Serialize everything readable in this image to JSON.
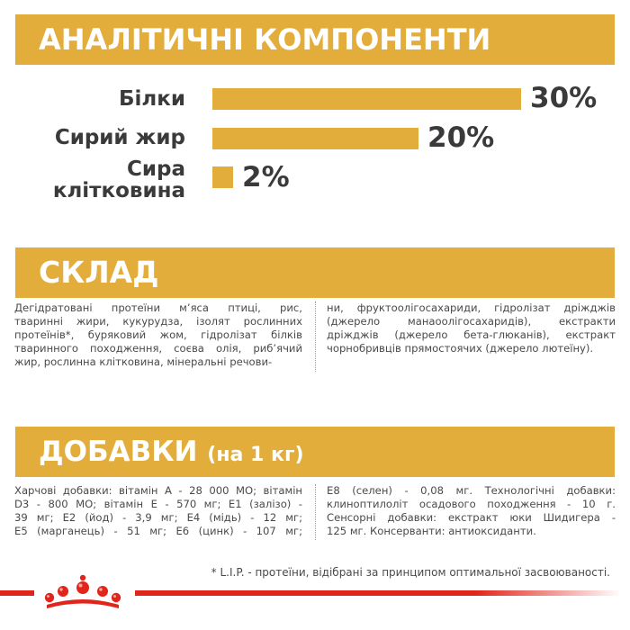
{
  "analytic": {
    "title": "АНАЛІТИЧНІ КОМПОНЕНТИ",
    "rows": [
      {
        "label_lines": [
          "Білки"
        ],
        "value": 30,
        "display": "30%"
      },
      {
        "label_lines": [
          "Сирий жир"
        ],
        "value": 20,
        "display": "20%"
      },
      {
        "label_lines": [
          "Сира",
          "клітковина"
        ],
        "value": 2,
        "display": "2%"
      }
    ]
  },
  "composition": {
    "title": "СКЛАД",
    "left_lines": [
      "Дегідратовані протеїни м’яса птиці, рис,",
      "тваринні жири, кукурудза, ізолят рослинних",
      "протеїнів*, буряковий жом, гідролізат білків",
      "тваринного походження, соєва олія, риб’ячий",
      "жир, рослинна клітковина, мінеральні речови-"
    ],
    "right_lines": [
      "ни, фруктоолігосахариди, гідролізат дріжджів",
      "(джерело манаоолігосахаридів), екстракти",
      "дріжджів (джерело бета-глюканів), екстракт",
      "чорнобривців прямостоячих (джерело лютеїну)."
    ]
  },
  "additives": {
    "title": "ДОБАВКИ",
    "title_suffix": "(на 1 кг)",
    "left_lines": [
      "Харчові добавки: вітамін А - 28 000 МО; вітамін",
      "D3 - 800 МО; вітамін Е - 570 мг; Е1 (залізо) -",
      "39 мг; Е2 (йод) - 3,9 мг; Е4 (мідь) - 12 мг;",
      "Е5 (марганець) - 51 мг; Е6 (цинк) - 107 мг;"
    ],
    "right_lines": [
      "Е8 (селен) - 0,08 мг. Технологічні добавки:",
      "клиноптилоліт осадового походження - 10 г.",
      "Сенсорні добавки: екстракт юки Шидигера -",
      "125 мг. Консерванти: антиоксиданти."
    ]
  },
  "footnote": "* L.I.P. - протеїни, відібрані за принципом оптимальної засвоюваності.",
  "colors": {
    "accent": "#e2ad3b",
    "text": "#3a3a3a",
    "brand_red": "#e1251b"
  },
  "logo": {
    "icon": "royal-canin-crown-icon"
  }
}
